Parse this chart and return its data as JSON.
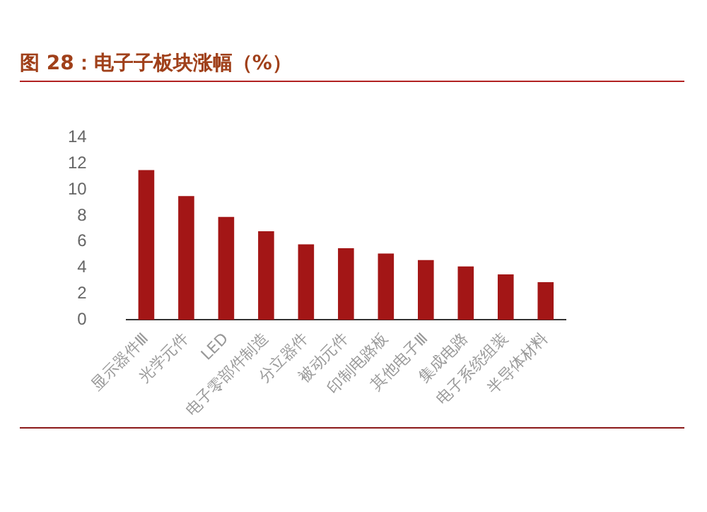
{
  "chart_data": {
    "type": "bar",
    "title": "图 28：电子子板块涨幅（%）",
    "categories": [
      "显示器件Ⅲ",
      "光学元件",
      "LED",
      "电子零部件制造",
      "分立器件",
      "被动元件",
      "印制电路板",
      "其他电子Ⅲ",
      "集成电路",
      "电子系统组装",
      "半导体材料"
    ],
    "values": [
      11.5,
      9.5,
      7.9,
      6.8,
      5.8,
      5.5,
      5.1,
      4.6,
      4.1,
      3.5,
      2.9
    ],
    "color": "#a31616",
    "ylim": [
      0,
      14
    ],
    "yticks": [
      0,
      2,
      4,
      6,
      8,
      10,
      12,
      14
    ],
    "grid": false,
    "legend": false
  }
}
